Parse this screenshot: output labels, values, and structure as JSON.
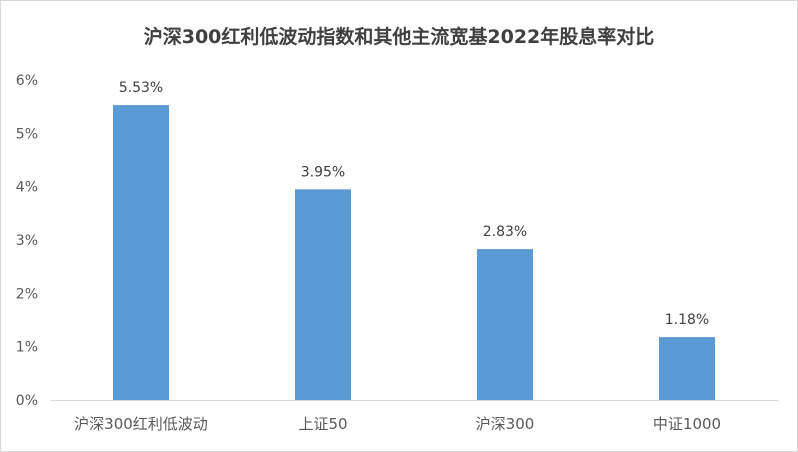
{
  "chart_data": {
    "type": "bar",
    "title": "沪深300红利低波动指数和其他主流宽基2022年股息率对比",
    "xlabel": "",
    "ylabel": "",
    "categories": [
      "沪深300红利低波动",
      "上证50",
      "沪深300",
      "中证1000"
    ],
    "values": [
      5.53,
      3.95,
      2.83,
      1.18
    ],
    "data_labels": [
      "5.53%",
      "3.95%",
      "2.83%",
      "1.18%"
    ],
    "ylim": [
      0,
      6
    ],
    "yticks": [
      "0%",
      "1%",
      "2%",
      "3%",
      "4%",
      "5%",
      "6%"
    ],
    "grid": false,
    "legend": "none",
    "bar_color": "#5b9bd5",
    "axis_color": "#d9d9d9"
  }
}
